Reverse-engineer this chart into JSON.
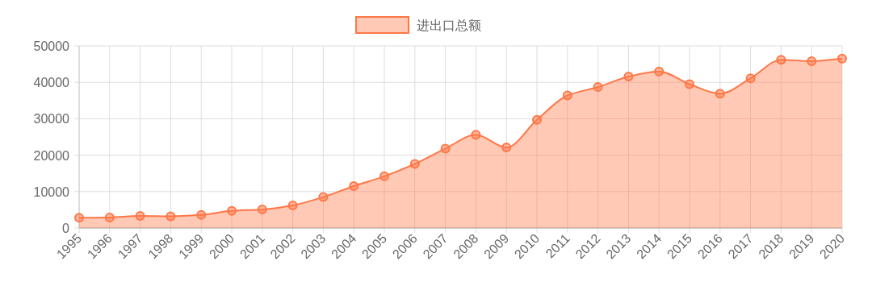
{
  "chart_data": {
    "type": "area",
    "categories": [
      "1995",
      "1996",
      "1997",
      "1998",
      "1999",
      "2000",
      "2001",
      "2002",
      "2003",
      "2004",
      "2005",
      "2006",
      "2007",
      "2008",
      "2009",
      "2010",
      "2011",
      "2012",
      "2013",
      "2014",
      "2015",
      "2016",
      "2017",
      "2018",
      "2019",
      "2020"
    ],
    "series": [
      {
        "name": "进出口总额",
        "color": "#ff7747",
        "values": [
          2800,
          2900,
          3300,
          3200,
          3600,
          4700,
          5100,
          6200,
          8500,
          11500,
          14200,
          17600,
          21800,
          25600,
          22100,
          29700,
          36400,
          38700,
          41600,
          43000,
          39500,
          36900,
          41100,
          46200,
          45800,
          46500
        ]
      }
    ],
    "ylim": [
      0,
      50000
    ],
    "yticks": [
      0,
      10000,
      20000,
      30000,
      40000,
      50000
    ],
    "grid": true,
    "legend": "top",
    "marker": "circle"
  }
}
